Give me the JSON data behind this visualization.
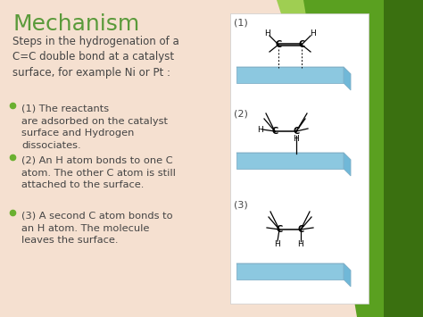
{
  "title": "Mechanism",
  "title_color": "#5a9a3a",
  "title_fontsize": 18,
  "bg_color": "#f5e0d0",
  "intro_text": "Steps in the hydrogenation of a\nC=C double bond at a catalyst\nsurface, for example Ni or Pt :",
  "bullet_color": "#6ab030",
  "bullet_texts": [
    "(1) The reactants\nare adsorbed on the catalyst\nsurface and Hydrogen\ndissociates.",
    "(2) An H atom bonds to one C\natom. The other C atom is still\nattached to the surface.",
    "(3) A second C atom bonds to\nan H atom. The molecule\nleaves the surface."
  ],
  "text_color": "#444444",
  "body_fontsize": 8.5,
  "bullet_fontsize": 8.2,
  "green1": "#8dc63f",
  "green2": "#5a9a1a",
  "green3": "#4a8020",
  "white_panel": "#ffffff",
  "surf_top": "#b8dff0",
  "surf_front": "#8cc8e0",
  "surf_right": "#70b8d8",
  "surf_edge": "#80b0c8"
}
